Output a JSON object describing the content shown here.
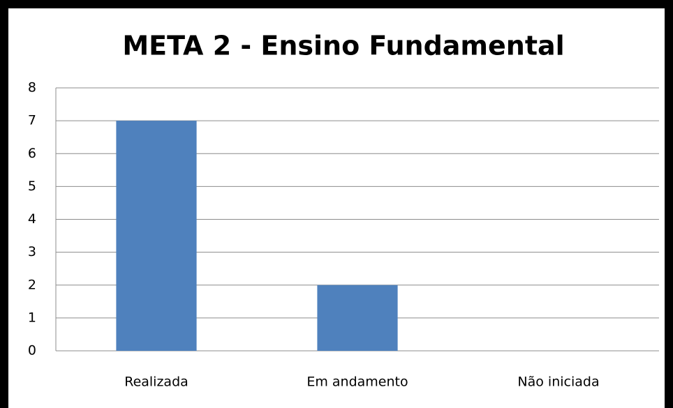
{
  "chart_data": {
    "type": "bar",
    "title": "META  2 - Ensino Fundamental",
    "categories": [
      "Realizada",
      "Em andamento",
      "Não iniciada"
    ],
    "values": [
      7,
      2,
      0
    ],
    "color": "#4f81bd",
    "ylim": [
      0,
      8
    ],
    "yticks": [
      0,
      1,
      2,
      3,
      4,
      5,
      6,
      7,
      8
    ],
    "grid": true
  }
}
